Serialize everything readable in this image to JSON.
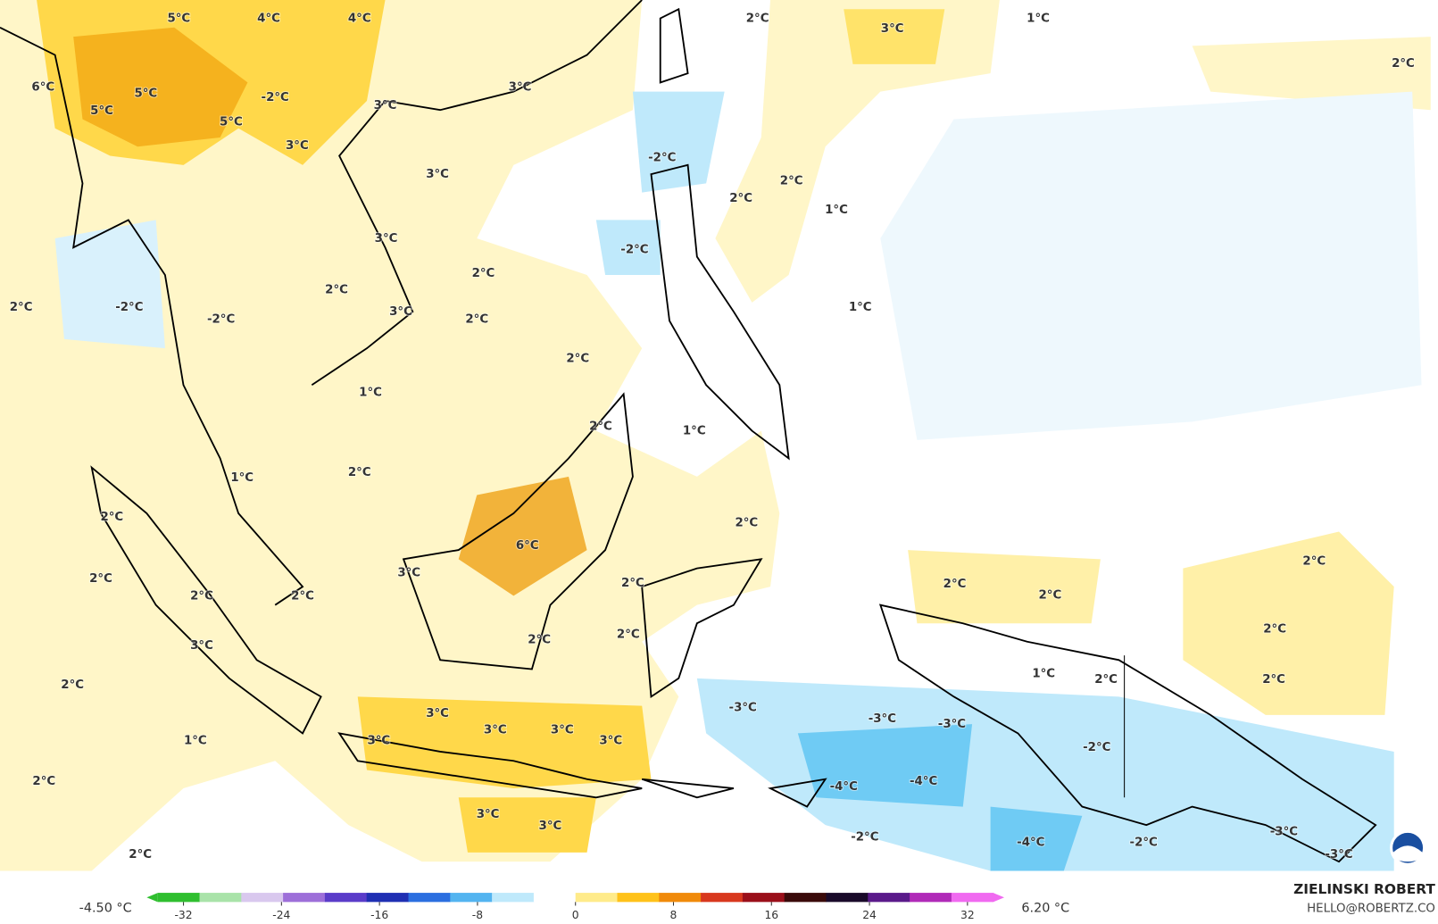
{
  "map": {
    "labels": [
      "5°C",
      "4°C",
      "4°C",
      "2°C",
      "3°C",
      "1°C",
      "2°C",
      "6°C",
      "5°C",
      "5°C",
      "-2°C",
      "3°C",
      "5°C",
      "3°C",
      "3°C",
      "3°C",
      "-2°C",
      "2°C",
      "2°C",
      "1°C",
      "-2°C",
      "3°C",
      "2°C",
      "2°C",
      "2°C",
      "-2°C",
      "-2°C",
      "3°C",
      "2°C",
      "1°C",
      "2°C",
      "1°C",
      "2°C",
      "1°C",
      "2°C",
      "1°C",
      "2°C",
      "2°C",
      "6°C",
      "2°C",
      "2°C",
      "3°C",
      "2°C",
      "2°C",
      "2°C",
      "2°C",
      "2°C",
      "2°C",
      "2°C",
      "2°C",
      "3°C",
      "2°C",
      "1°C",
      "2°C",
      "2°C",
      "-3°C",
      "3°C",
      "3°C",
      "3°C",
      "3°C",
      "3°C",
      "1°C",
      "-3°C",
      "-3°C",
      "-2°C",
      "2°C",
      "-4°C",
      "-4°C",
      "3°C",
      "3°C",
      "-2°C",
      "-4°C",
      "-2°C",
      "-3°C",
      "2°C",
      "-3°C"
    ]
  },
  "colorbar": {
    "min_label": "-4.50 °C",
    "max_label": "6.20 °C",
    "range": [
      -35,
      35
    ],
    "ticks": [
      -32,
      -24,
      -16,
      -8,
      0,
      8,
      16,
      24,
      32
    ],
    "colors": [
      "#2fbf2f",
      "#a9e3a9",
      "#d9c8ee",
      "#9d6fd9",
      "#5a3cc9",
      "#1f2fb3",
      "#2b6fe0",
      "#53b4f0",
      "#bfe9fb",
      "#ffffff",
      "#ffeb8a",
      "#ffc21a",
      "#f08a0a",
      "#d8381e",
      "#9a0f1a",
      "#3a0a0a",
      "#1a0a2a",
      "#5a1a8a",
      "#b02ab8",
      "#f06af0"
    ]
  },
  "credits": {
    "name": "ZIELINSKI ROBERT",
    "email": "HELLO@ROBERTZ.CO"
  }
}
